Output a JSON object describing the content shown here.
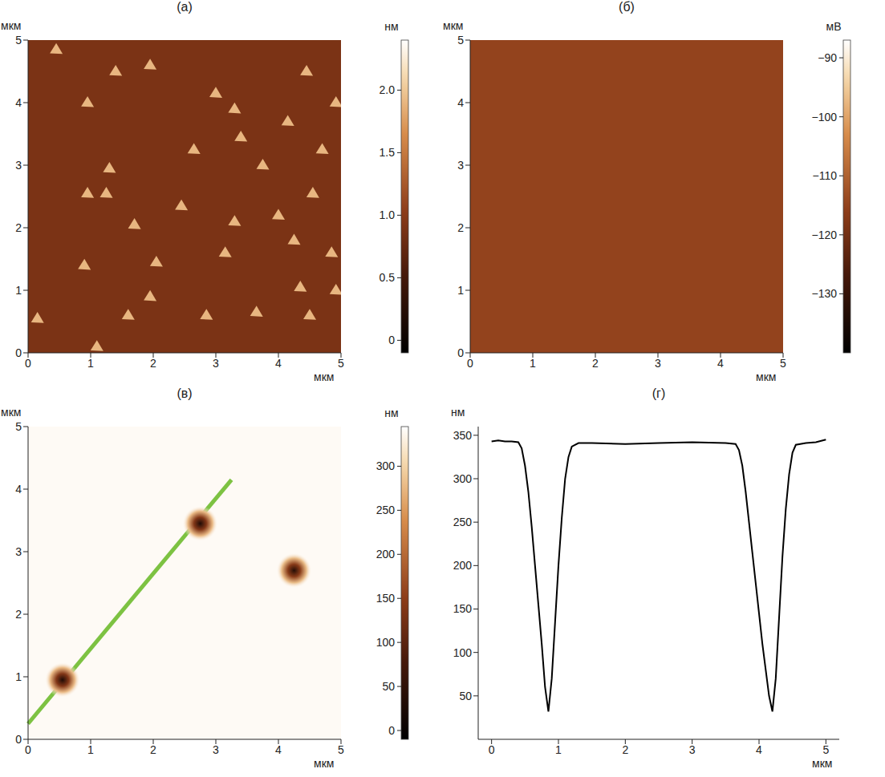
{
  "chart_data": [
    {
      "type": "image",
      "title": "(а)",
      "x_label": "мкм",
      "y_label": "мкм",
      "xlim": [
        0,
        5
      ],
      "ylim": [
        0,
        5
      ],
      "xticks": [
        0,
        1,
        2,
        3,
        4,
        5
      ],
      "yticks": [
        0,
        1,
        2,
        3,
        4,
        5
      ],
      "background": 0.9,
      "islands": {
        "x": [
          0.45,
          1.4,
          1.95,
          0.95,
          3.0,
          4.45,
          3.3,
          4.15,
          4.92,
          2.65,
          3.4,
          4.7,
          1.3,
          3.75,
          0.95,
          1.25,
          4.55,
          2.45,
          3.3,
          4.0,
          1.7,
          4.25,
          2.05,
          3.15,
          0.9,
          4.85,
          4.35,
          1.95,
          4.5,
          3.65,
          2.85,
          1.6,
          0.15,
          1.1,
          4.92
        ],
        "y": [
          4.85,
          4.5,
          4.6,
          4.0,
          4.15,
          4.5,
          3.9,
          3.7,
          4.0,
          3.25,
          3.45,
          3.25,
          2.95,
          3.0,
          2.55,
          2.55,
          2.55,
          2.35,
          2.1,
          2.2,
          2.05,
          1.8,
          1.45,
          1.6,
          1.4,
          1.6,
          1.05,
          0.9,
          0.6,
          0.65,
          0.6,
          0.6,
          0.55,
          0.1,
          1.0
        ],
        "values": [
          1.9,
          1.9,
          1.9,
          1.9,
          1.9,
          1.9,
          1.9,
          1.9,
          1.9,
          1.9,
          1.9,
          1.9,
          1.9,
          1.9,
          1.9,
          1.9,
          1.9,
          1.9,
          1.9,
          1.9,
          1.9,
          1.9,
          1.9,
          1.9,
          1.9,
          1.9,
          1.9,
          1.9,
          1.9,
          1.9,
          1.9,
          1.9,
          1.9,
          1.9,
          1.9
        ]
      },
      "colorbar": {
        "label": "нм",
        "range": [
          -0.1,
          2.4
        ],
        "ticks": [
          0,
          0.5,
          {
            "value": 1,
            "label": "1.0"
          },
          1.5,
          {
            "value": 2,
            "label": "2.0"
          }
        ]
      }
    },
    {
      "type": "image",
      "title": "(б)",
      "x_label": "мкм",
      "y_label": "мкм",
      "xlim": [
        0,
        5
      ],
      "ylim": [
        0,
        5
      ],
      "xticks": [
        0,
        1,
        2,
        3,
        4,
        5
      ],
      "yticks": [
        0,
        1,
        2,
        3,
        4,
        5
      ],
      "background": -115,
      "colorbar": {
        "label": "мВ",
        "range": [
          -140,
          -87
        ],
        "ticks": [
          {
            "value": -90,
            "label": "−90"
          },
          {
            "value": -100,
            "label": "−100"
          },
          {
            "value": -110,
            "label": "−110"
          },
          {
            "value": -120,
            "label": "−120"
          },
          {
            "value": -130,
            "label": "−130"
          }
        ]
      }
    },
    {
      "type": "image",
      "title": "(в)",
      "x_label": "мкм",
      "y_label": "мкм",
      "xlim": [
        0,
        5
      ],
      "ylim": [
        0,
        5
      ],
      "xticks": [
        0,
        1,
        2,
        3,
        4,
        5
      ],
      "yticks": [
        0,
        1,
        2,
        3,
        4,
        5
      ],
      "background": 340,
      "pits": {
        "x": [
          0.55,
          2.75,
          4.25
        ],
        "y": [
          0.95,
          3.45,
          2.7
        ],
        "values": [
          30,
          30,
          40
        ]
      },
      "profile_line": {
        "x": [
          0,
          3.25
        ],
        "y": [
          0.25,
          4.15
        ],
        "color": "#7dc242"
      },
      "colorbar": {
        "label": "нм",
        "range": [
          -10,
          345
        ],
        "ticks": [
          0,
          50,
          100,
          150,
          200,
          250,
          300
        ]
      }
    },
    {
      "type": "line",
      "title": "(г)",
      "x_label": "мкм",
      "y_label": "нм",
      "xlim": [
        -0.2,
        5.2
      ],
      "ylim": [
        0,
        360
      ],
      "xticks": [
        0,
        1,
        2,
        3,
        4,
        5
      ],
      "yticks": [
        50,
        100,
        150,
        200,
        250,
        300,
        350
      ],
      "color": "#000000",
      "x": [
        0,
        0.1,
        0.2,
        0.3,
        0.4,
        0.45,
        0.5,
        0.55,
        0.6,
        0.65,
        0.7,
        0.75,
        0.8,
        0.85,
        0.9,
        0.95,
        1.0,
        1.05,
        1.1,
        1.15,
        1.2,
        1.3,
        1.5,
        2.0,
        2.5,
        3.0,
        3.5,
        3.65,
        3.7,
        3.75,
        3.8,
        3.85,
        3.9,
        3.95,
        4.0,
        4.05,
        4.1,
        4.15,
        4.2,
        4.25,
        4.3,
        4.35,
        4.4,
        4.45,
        4.5,
        4.55,
        4.7,
        4.85,
        5.0
      ],
      "values": [
        343,
        344,
        343,
        343,
        342,
        335,
        315,
        285,
        245,
        200,
        155,
        110,
        60,
        32,
        70,
        135,
        200,
        255,
        300,
        325,
        337,
        341,
        341,
        340,
        341,
        342,
        341,
        340,
        333,
        315,
        285,
        250,
        215,
        180,
        145,
        110,
        80,
        50,
        32,
        70,
        140,
        210,
        265,
        305,
        330,
        339,
        341,
        342,
        345
      ]
    }
  ]
}
